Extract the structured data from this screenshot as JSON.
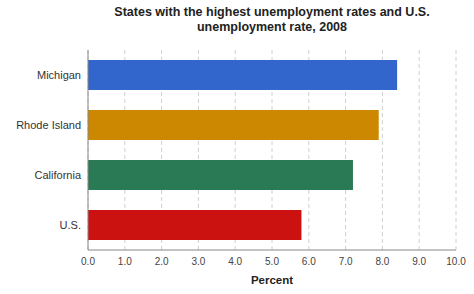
{
  "chart_data": {
    "type": "bar",
    "orientation": "horizontal",
    "title": "States with the highest unemployment rates and U.S.\nunemployment rate, 2008",
    "categories": [
      "Michigan",
      "Rhode Island",
      "California",
      "U.S."
    ],
    "values": [
      8.4,
      7.9,
      7.2,
      5.8
    ],
    "colors": [
      "#3366cc",
      "#cc8800",
      "#2a7a55",
      "#cc1111"
    ],
    "xlabel": "Percent",
    "xlim": [
      0,
      10
    ],
    "xticks": [
      {
        "value": 0.0,
        "label": "0.0"
      },
      {
        "value": 1.0,
        "label": "1.0"
      },
      {
        "value": 2.0,
        "label": "2.0"
      },
      {
        "value": 3.0,
        "label": "3.0"
      },
      {
        "value": 4.0,
        "label": "4.0"
      },
      {
        "value": 5.0,
        "label": "5.0"
      },
      {
        "value": 6.0,
        "label": "6.0"
      },
      {
        "value": 7.0,
        "label": "7.0"
      },
      {
        "value": 8.0,
        "label": "8.0"
      },
      {
        "value": 9.0,
        "label": "9.0"
      },
      {
        "value": 10.0,
        "label": "10.0"
      }
    ],
    "grid": true
  }
}
